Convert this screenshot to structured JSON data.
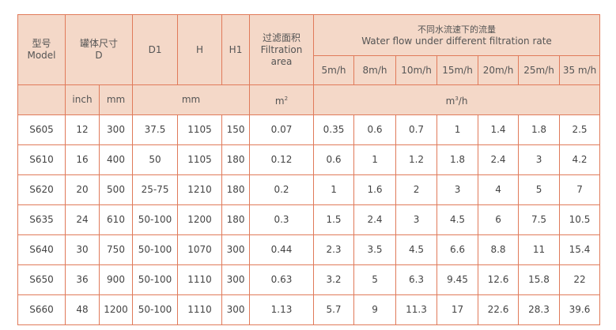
{
  "header": {
    "model_cn": "型号",
    "model_en": "Model",
    "tank_cn": "罐体尺寸",
    "tank_en": "D",
    "d1": "D1",
    "h": "H",
    "h1": "H1",
    "area_cn": "过滤面积",
    "area_en1": "Filtration",
    "area_en2": "area",
    "flow_cn": "不同水流速下的流量",
    "flow_en": "Water flow under different filtration rate",
    "rates": [
      "5m/h",
      "8m/h",
      "10m/h",
      "15m/h",
      "20m/h",
      "25m/h",
      "35 m/h"
    ],
    "unit_inch": "inch",
    "unit_mm": "mm",
    "unit_mm2": "mm",
    "unit_area": "m",
    "unit_area_sup": "2",
    "unit_flow_m": "m",
    "unit_flow_sup": "3",
    "unit_flow_h": "/h"
  },
  "rows": [
    [
      "S605",
      "12",
      "300",
      "37.5",
      "1105",
      "150",
      "0.07",
      "0.35",
      "0.6",
      "0.7",
      "1",
      "1.4",
      "1.8",
      "2.5"
    ],
    [
      "S610",
      "16",
      "400",
      "50",
      "1105",
      "180",
      "0.12",
      "0.6",
      "1",
      "1.2",
      "1.8",
      "2.4",
      "3",
      "4.2"
    ],
    [
      "S620",
      "20",
      "500",
      "25-75",
      "1210",
      "180",
      "0.2",
      "1",
      "1.6",
      "2",
      "3",
      "4",
      "5",
      "7"
    ],
    [
      "S635",
      "24",
      "610",
      "50-100",
      "1200",
      "180",
      "0.3",
      "1.5",
      "2.4",
      "3",
      "4.5",
      "6",
      "7.5",
      "10.5"
    ],
    [
      "S640",
      "30",
      "750",
      "50-100",
      "1070",
      "300",
      "0.44",
      "2.3",
      "3.5",
      "4.5",
      "6.6",
      "8.8",
      "11",
      "15.4"
    ],
    [
      "S650",
      "36",
      "900",
      "50-100",
      "1110",
      "300",
      "0.63",
      "3.2",
      "5",
      "6.3",
      "9.45",
      "12.6",
      "15.8",
      "22"
    ],
    [
      "S660",
      "48",
      "1200",
      "50-100",
      "1110",
      "300",
      "1.13",
      "5.7",
      "9",
      "11.3",
      "17",
      "22.6",
      "28.3",
      "39.6"
    ]
  ],
  "colors": {
    "header_bg": "#f4d8c8",
    "border": "#e07a5a"
  }
}
